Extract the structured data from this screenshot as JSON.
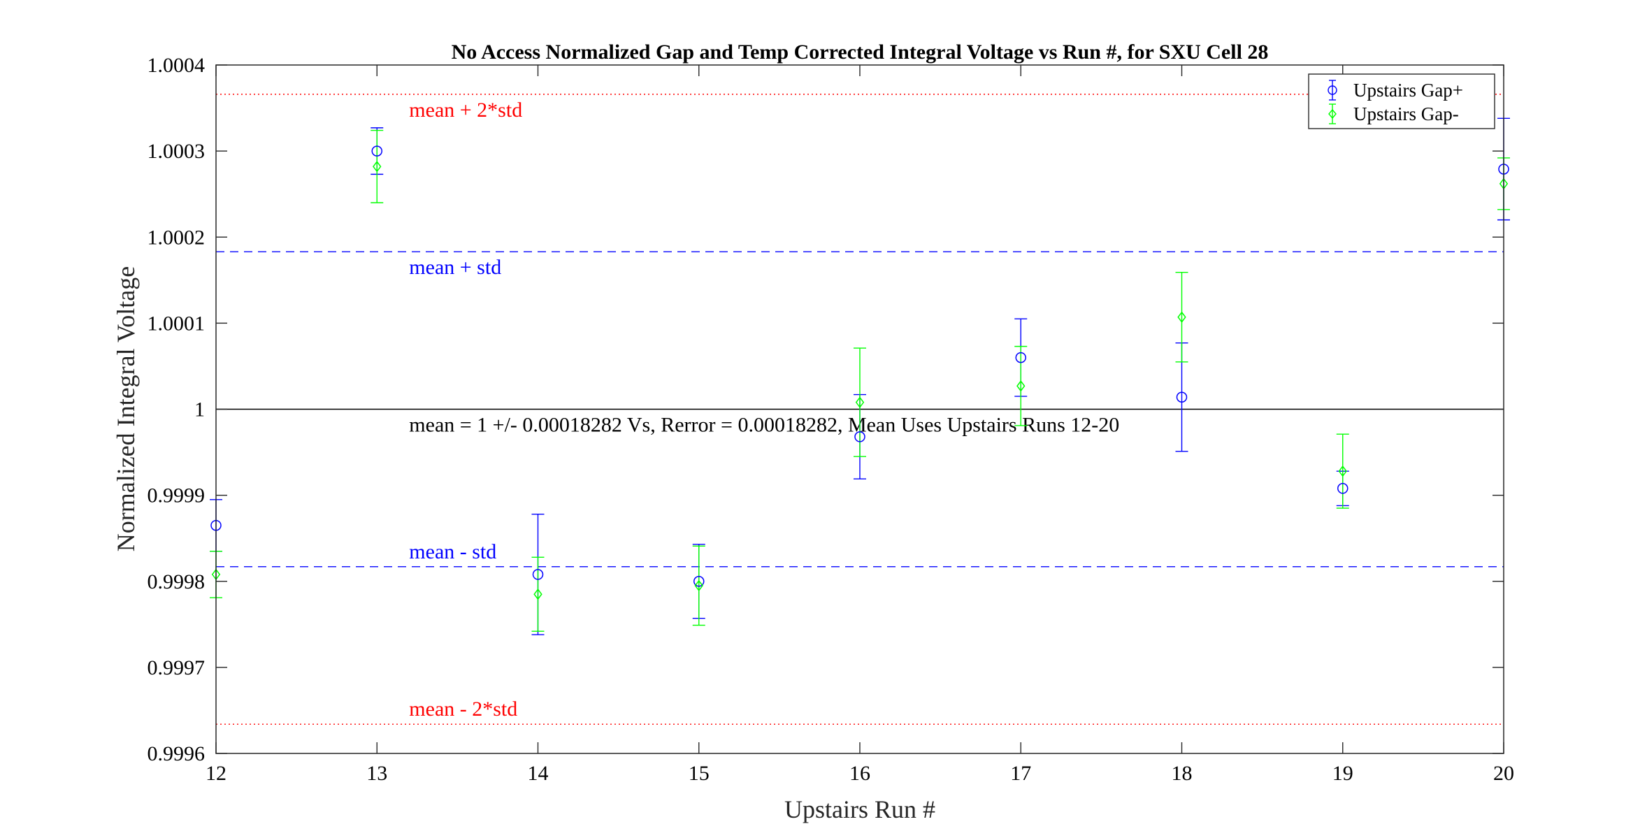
{
  "chart_data": {
    "type": "scatter",
    "title": "No Access Normalized Gap and Temp Corrected Integral Voltage vs Run #, for SXU Cell 28",
    "xlabel": "Upstairs Run #",
    "ylabel": "Normalized Integral Voltage",
    "xlim": [
      12,
      20
    ],
    "ylim": [
      0.9996,
      1.0004
    ],
    "xticks": [
      "12",
      "13",
      "14",
      "15",
      "16",
      "17",
      "18",
      "19",
      "20"
    ],
    "yticks": [
      "0.9996",
      "0.9997",
      "0.9998",
      "0.9999",
      "1",
      "1.0001",
      "1.0002",
      "1.0003",
      "1.0004"
    ],
    "grid": false,
    "legend_position": "top-right",
    "series": [
      {
        "name": "Upstairs Gap+",
        "color": "#0000ff",
        "marker": "circle",
        "x": [
          12,
          13,
          14,
          15,
          16,
          17,
          18,
          19,
          20
        ],
        "y": [
          0.999865,
          1.0003,
          0.999808,
          0.9998,
          0.999968,
          1.00006,
          1.000014,
          0.999908,
          1.000279
        ],
        "err": [
          3e-05,
          2.7e-05,
          7e-05,
          4.3e-05,
          4.9e-05,
          4.5e-05,
          6.3e-05,
          2e-05,
          5.9e-05
        ]
      },
      {
        "name": "Upstairs Gap-",
        "color": "#00ff00",
        "marker": "diamond",
        "x": [
          12,
          13,
          14,
          15,
          16,
          17,
          18,
          19,
          20
        ],
        "y": [
          0.999808,
          1.000282,
          0.999785,
          0.999795,
          1.000008,
          1.000027,
          1.000107,
          0.999928,
          1.000262
        ],
        "err": [
          2.7e-05,
          4.2e-05,
          4.3e-05,
          4.6e-05,
          6.3e-05,
          4.6e-05,
          5.2e-05,
          4.3e-05,
          3e-05
        ]
      }
    ],
    "reference_lines": [
      {
        "label": "mean + 2*std",
        "value": 1.000366,
        "color": "#ff0000",
        "style": "dotted"
      },
      {
        "label": "mean + std",
        "value": 1.000183,
        "color": "#0000ff",
        "style": "dashed"
      },
      {
        "label": "mean = 1 +/- 0.00018282 Vs, Rerror = 0.00018282, Mean Uses Upstairs Runs 12-20",
        "value": 1.0,
        "color": "#000000",
        "style": "solid"
      },
      {
        "label": "mean - std",
        "value": 0.999817,
        "color": "#0000ff",
        "style": "dashed"
      },
      {
        "label": "mean - 2*std",
        "value": 0.999634,
        "color": "#ff0000",
        "style": "dotted"
      }
    ]
  }
}
